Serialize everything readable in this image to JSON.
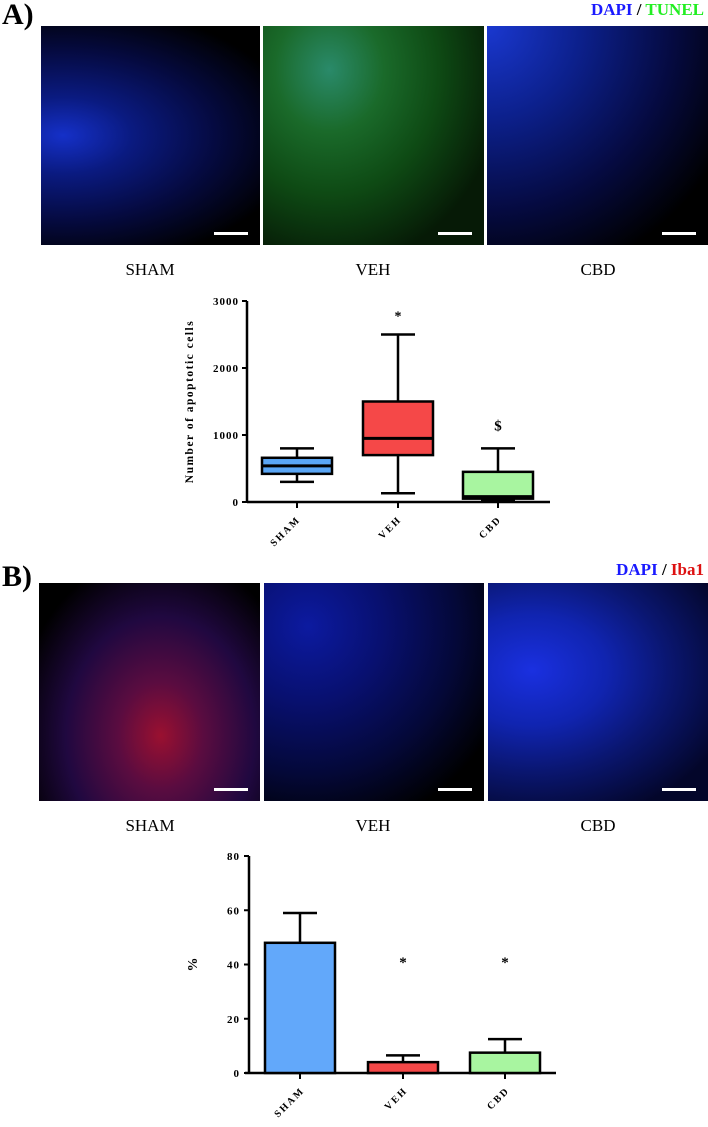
{
  "panelA": {
    "label": "A)",
    "legend": {
      "stain1": "DAPI",
      "sep": " / ",
      "stain2": "TUNEL",
      "stain1_color": "#1a1aff",
      "stain2_color": "#22ee22"
    },
    "images": [
      {
        "condition": "SHAM",
        "tint": "blue"
      },
      {
        "condition": "VEH",
        "tint": "green"
      },
      {
        "condition": "CBD",
        "tint": "blue"
      }
    ]
  },
  "panelB": {
    "label": "B)",
    "legend": {
      "stain1": "DAPI",
      "sep": " / ",
      "stain2": "Iba1",
      "stain1_color": "#1a1aff",
      "stain2_color": "#dd1111"
    },
    "images": [
      {
        "condition": "SHAM",
        "tint": "red"
      },
      {
        "condition": "VEH",
        "tint": "blue"
      },
      {
        "condition": "CBD",
        "tint": "blue"
      }
    ]
  },
  "chart_data": [
    {
      "type": "box",
      "title": "",
      "xlabel": "",
      "ylabel": "Number of apoptotic cells",
      "ylim": [
        0,
        3000
      ],
      "yticks": [
        0,
        1000,
        2000,
        3000
      ],
      "categories": [
        "SHAM",
        "VEH",
        "CBD"
      ],
      "series": [
        {
          "name": "SHAM",
          "min": 300,
          "q1": 420,
          "median": 540,
          "q3": 660,
          "max": 800,
          "color": "#5aa6f5",
          "annotation": ""
        },
        {
          "name": "VEH",
          "min": 130,
          "q1": 700,
          "median": 950,
          "q3": 1500,
          "max": 2500,
          "color": "#f54848",
          "annotation": "*"
        },
        {
          "name": "CBD",
          "min": 20,
          "q1": 50,
          "median": 80,
          "q3": 450,
          "max": 800,
          "color": "#a8f5a0",
          "annotation": "$"
        }
      ]
    },
    {
      "type": "bar",
      "title": "",
      "xlabel": "",
      "ylabel": "%",
      "ylim": [
        0,
        80
      ],
      "yticks": [
        0,
        20,
        40,
        60,
        80
      ],
      "categories": [
        "SHAM",
        "VEH",
        "CBD"
      ],
      "values": [
        48,
        4,
        7.5
      ],
      "errors": [
        11,
        2.5,
        5
      ],
      "colors": [
        "#62a8fa",
        "#f54848",
        "#a8f5a0"
      ],
      "annotations": [
        "",
        "*",
        "*"
      ]
    }
  ]
}
